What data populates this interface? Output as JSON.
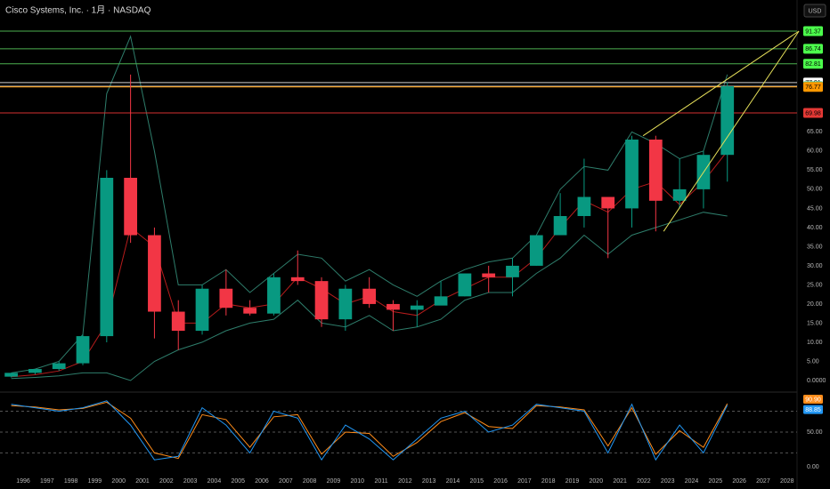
{
  "header": {
    "title": "Cisco Systems, Inc. · 1月 · NASDAQ",
    "currency": "USD"
  },
  "chart_data": [
    {
      "type": "candlestick",
      "x": [
        1995.5,
        1996.5,
        1997.5,
        1998.5,
        1999.5,
        2000.5,
        2001.5,
        2002.5,
        2003.5,
        2004.5,
        2005.5,
        2006.5,
        2007.5,
        2008.5,
        2009.5,
        2010.5,
        2011.5,
        2012.5,
        2013.5,
        2014.5,
        2015.5,
        2016.5,
        2017.5,
        2018.5,
        2019.5,
        2020.5,
        2021.5,
        2022.5,
        2023.5,
        2024.5,
        2025.5
      ],
      "open": [
        1,
        2,
        3,
        4.5,
        11.6,
        53,
        38,
        18,
        13,
        24,
        19,
        17.5,
        27,
        26,
        16,
        24,
        20,
        18.5,
        19.6,
        22,
        28,
        27,
        30,
        38,
        43,
        48,
        45,
        63,
        47,
        50,
        59
      ],
      "high": [
        2,
        3,
        5,
        12,
        55,
        80,
        40,
        21,
        25,
        29,
        21,
        28,
        34,
        27,
        25,
        27,
        21,
        21,
        26,
        28,
        30,
        32,
        38,
        49,
        58,
        48,
        64,
        64,
        58,
        60,
        78
      ],
      "low": [
        0.8,
        1.6,
        2.5,
        4,
        10,
        36,
        11,
        8,
        12,
        17,
        17,
        17,
        25,
        14,
        13,
        19,
        13,
        14,
        20,
        22,
        23,
        22,
        30,
        38,
        40,
        32,
        40,
        39,
        45,
        45,
        52
      ],
      "close": [
        2,
        3,
        4.5,
        11.6,
        53,
        38,
        18,
        13,
        24,
        19,
        17.5,
        27,
        26,
        16,
        24,
        20,
        18.5,
        19.6,
        22,
        28,
        27,
        30,
        38,
        43,
        48,
        45,
        63,
        47,
        50,
        59,
        76.94
      ],
      "up_color": "#089981",
      "down_color": "#f23645",
      "lines": [
        {
          "color": "#b71c1c",
          "values": [
            1,
            1.5,
            2.5,
            5,
            15,
            40,
            35,
            15,
            15,
            20,
            19,
            20,
            27,
            24,
            20,
            22,
            18,
            17,
            21,
            24,
            27,
            27,
            32,
            40,
            47,
            44,
            50,
            52,
            46,
            52,
            60
          ]
        },
        {
          "color": "#2e7d6b",
          "values": [
            2,
            3,
            5,
            12,
            75,
            90,
            60,
            25,
            25,
            29,
            23,
            28,
            33,
            32,
            26,
            29,
            25,
            22,
            26,
            29,
            31,
            32,
            38,
            50,
            56,
            55,
            65,
            62,
            58,
            60,
            80
          ]
        },
        {
          "color": "#2e7d6b",
          "values": [
            0.5,
            0.8,
            1.2,
            2,
            2,
            0,
            5,
            8,
            10,
            13,
            15,
            16,
            21,
            15,
            14,
            17,
            13,
            14,
            16,
            21,
            23,
            23,
            28,
            32,
            38,
            33,
            38,
            40,
            42,
            44,
            43
          ]
        }
      ],
      "trend_lines": [
        {
          "color": "#e6e05a",
          "x": [
            2021.97,
            2028.5
          ],
          "values": [
            64,
            91.37
          ]
        },
        {
          "color": "#e6e05a",
          "x": [
            2022.83,
            2028.5
          ],
          "values": [
            39,
            91.37
          ]
        }
      ],
      "price_levels": [
        {
          "value": 91.37,
          "color": "#4caf50",
          "tag": "#4cff4c"
        },
        {
          "value": 86.74,
          "color": "#4caf50",
          "tag": "#4cff4c"
        },
        {
          "value": 82.81,
          "color": "#4caf50",
          "tag": "#4cff4c"
        },
        {
          "value": 77.91,
          "color": "#d0d0d0",
          "tag": "#ffffff"
        },
        {
          "value": 76.94,
          "color": "#d0d0d0",
          "tag": "#26c281"
        },
        {
          "value": 76.77,
          "color": "#ff9800",
          "tag": "#ff9800"
        },
        {
          "value": 69.98,
          "color": "#d32f2f",
          "tag": "#e53935"
        }
      ],
      "xlim": [
        1995.03,
        2028.42
      ],
      "ylim": [
        -2.8,
        99.5
      ],
      "yticks": [
        {
          "value": 0,
          "label": "0.0000"
        },
        {
          "value": 5,
          "label": "5.00"
        },
        {
          "value": 10,
          "label": "10.00"
        },
        {
          "value": 15,
          "label": "15.00"
        },
        {
          "value": 20,
          "label": "20.00"
        },
        {
          "value": 25,
          "label": "25.00"
        },
        {
          "value": 30,
          "label": "30.00"
        },
        {
          "value": 35,
          "label": "35.00"
        },
        {
          "value": 40,
          "label": "40.00"
        },
        {
          "value": 45,
          "label": "45.00"
        },
        {
          "value": 50,
          "label": "50.00"
        },
        {
          "value": 55,
          "label": "55.00"
        },
        {
          "value": 60,
          "label": "60.00"
        },
        {
          "value": 65,
          "label": "65.00"
        }
      ]
    },
    {
      "type": "line",
      "x": [
        1995.5,
        1996.5,
        1997.5,
        1998.5,
        1999.5,
        2000.5,
        2001.5,
        2002.5,
        2003.5,
        2004.5,
        2005.5,
        2006.5,
        2007.5,
        2008.5,
        2009.5,
        2010.5,
        2011.5,
        2012.5,
        2013.5,
        2014.5,
        2015.5,
        2016.5,
        2017.5,
        2018.5,
        2019.5,
        2020.5,
        2021.5,
        2022.5,
        2023.5,
        2024.5,
        2025.5
      ],
      "series": [
        {
          "color": "#ff8c1a",
          "values": [
            88,
            86,
            82,
            84,
            93,
            70,
            20,
            12,
            75,
            68,
            28,
            72,
            75,
            18,
            50,
            48,
            15,
            35,
            65,
            78,
            58,
            55,
            88,
            86,
            82,
            30,
            85,
            18,
            52,
            28,
            90.9
          ]
        },
        {
          "color": "#2196f3",
          "values": [
            90,
            85,
            80,
            85,
            95,
            60,
            10,
            15,
            85,
            60,
            20,
            80,
            70,
            10,
            60,
            40,
            10,
            40,
            70,
            80,
            50,
            60,
            90,
            85,
            80,
            20,
            90,
            10,
            60,
            20,
            88.85
          ]
        }
      ],
      "tags": [
        {
          "value": 90.9,
          "label": "90.90",
          "color": "#ff8c1a"
        },
        {
          "value": 88.85,
          "label": "88.85",
          "color": "#2196f3"
        }
      ],
      "levels": [
        20,
        50,
        80
      ],
      "xlim": [
        1995.03,
        2028.42
      ],
      "ylim": [
        -12.8,
        105
      ],
      "yticks": [
        {
          "value": 0,
          "label": "0.00"
        },
        {
          "value": 50,
          "label": "50.00"
        }
      ],
      "xticks": [
        1996,
        1997,
        1998,
        1999,
        2000,
        2001,
        2002,
        2003,
        2004,
        2005,
        2006,
        2007,
        2008,
        2009,
        2010,
        2011,
        2012,
        2013,
        2014,
        2015,
        2016,
        2017,
        2018,
        2019,
        2020,
        2021,
        2022,
        2023,
        2024,
        2025,
        2026,
        2027,
        2028
      ]
    }
  ]
}
